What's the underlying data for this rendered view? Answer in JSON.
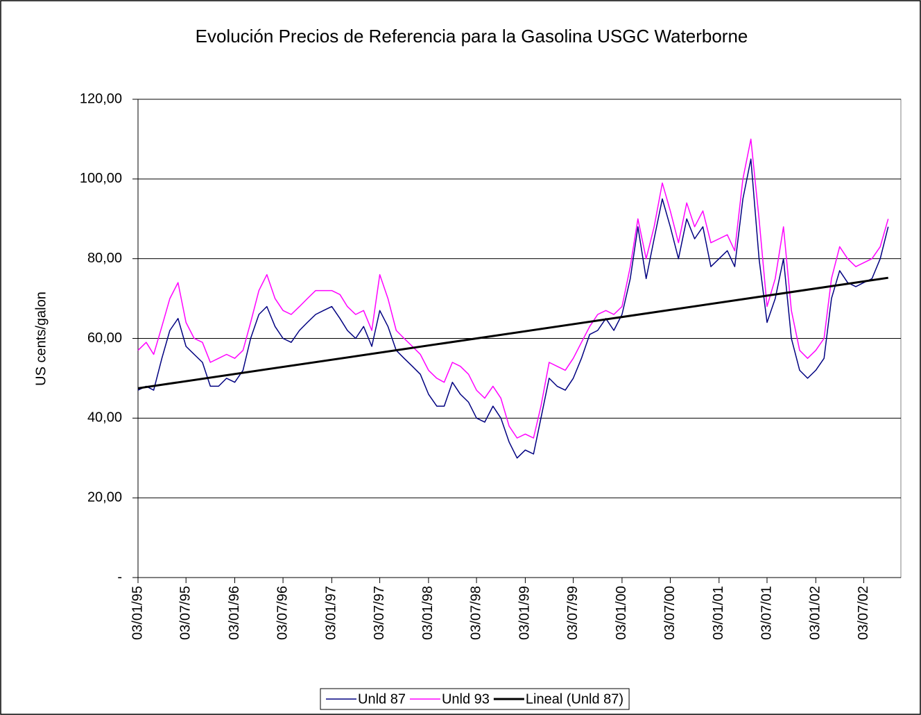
{
  "chart_data": {
    "type": "line",
    "title": "Evolución Precios de Referencia para la Gasolina USGC Waterborne",
    "y_label": "US cents/galon",
    "x": [
      "1995-01-03",
      "1995-02-03",
      "1995-03-03",
      "1995-04-03",
      "1995-05-03",
      "1995-06-03",
      "1995-07-03",
      "1995-08-03",
      "1995-09-03",
      "1995-10-03",
      "1995-11-03",
      "1995-12-03",
      "1996-01-03",
      "1996-02-03",
      "1996-03-03",
      "1996-04-03",
      "1996-05-03",
      "1996-06-03",
      "1996-07-03",
      "1996-08-03",
      "1996-09-03",
      "1996-10-03",
      "1996-11-03",
      "1996-12-03",
      "1997-01-03",
      "1997-02-03",
      "1997-03-03",
      "1997-04-03",
      "1997-05-03",
      "1997-06-03",
      "1997-07-03",
      "1997-08-03",
      "1997-09-03",
      "1997-10-03",
      "1997-11-03",
      "1997-12-03",
      "1998-01-03",
      "1998-02-03",
      "1998-03-03",
      "1998-04-03",
      "1998-05-03",
      "1998-06-03",
      "1998-07-03",
      "1998-08-03",
      "1998-09-03",
      "1998-10-03",
      "1998-11-03",
      "1998-12-03",
      "1999-01-03",
      "1999-02-03",
      "1999-03-03",
      "1999-04-03",
      "1999-05-03",
      "1999-06-03",
      "1999-07-03",
      "1999-08-03",
      "1999-09-03",
      "1999-10-03",
      "1999-11-03",
      "1999-12-03",
      "2000-01-03",
      "2000-02-03",
      "2000-03-03",
      "2000-04-03",
      "2000-05-03",
      "2000-06-03",
      "2000-07-03",
      "2000-08-03",
      "2000-09-03",
      "2000-10-03",
      "2000-11-03",
      "2000-12-03",
      "2001-01-03",
      "2001-02-03",
      "2001-03-03",
      "2001-04-03",
      "2001-05-03",
      "2001-06-03",
      "2001-07-03",
      "2001-08-03",
      "2001-09-03",
      "2001-10-03",
      "2001-11-03",
      "2001-12-03",
      "2002-01-03",
      "2002-02-03",
      "2002-03-03",
      "2002-04-03",
      "2002-05-03",
      "2002-06-03",
      "2002-07-03",
      "2002-08-03",
      "2002-09-03",
      "2002-10-03"
    ],
    "series": [
      {
        "name": "Unld 87",
        "color": "#000080",
        "width": 1.5,
        "values": [
          47,
          48,
          47,
          55,
          62,
          65,
          58,
          56,
          54,
          48,
          48,
          50,
          49,
          52,
          60,
          66,
          68,
          63,
          60,
          59,
          62,
          64,
          66,
          67,
          68,
          65,
          62,
          60,
          63,
          58,
          67,
          63,
          57,
          55,
          53,
          51,
          46,
          43,
          43,
          49,
          46,
          44,
          40,
          39,
          43,
          40,
          34,
          30,
          32,
          31,
          40,
          50,
          48,
          47,
          50,
          55,
          61,
          62,
          65,
          62,
          66,
          75,
          88,
          75,
          85,
          95,
          88,
          80,
          90,
          85,
          88,
          78,
          80,
          82,
          78,
          95,
          105,
          80,
          64,
          70,
          80,
          60,
          52,
          50,
          52,
          55,
          70,
          77,
          74,
          73,
          74,
          75,
          80,
          88
        ]
      },
      {
        "name": "Unld 93",
        "color": "#ff00ff",
        "width": 1.5,
        "values": [
          57,
          59,
          56,
          63,
          70,
          74,
          64,
          60,
          59,
          54,
          55,
          56,
          55,
          57,
          64,
          72,
          76,
          70,
          67,
          66,
          68,
          70,
          72,
          72,
          72,
          71,
          68,
          66,
          67,
          62,
          76,
          70,
          62,
          60,
          58,
          56,
          52,
          50,
          49,
          54,
          53,
          51,
          47,
          45,
          48,
          45,
          38,
          35,
          36,
          35,
          43,
          54,
          53,
          52,
          55,
          59,
          63,
          66,
          67,
          66,
          68,
          78,
          90,
          80,
          88,
          99,
          92,
          84,
          94,
          88,
          92,
          84,
          85,
          86,
          82,
          100,
          110,
          90,
          68,
          75,
          88,
          67,
          57,
          55,
          57,
          60,
          75,
          83,
          80,
          78,
          79,
          80,
          83,
          90
        ]
      },
      {
        "name": "Lineal (Unld 87)",
        "color": "#000000",
        "width": 3,
        "x": [
          "1995-01-03",
          "2002-10-03"
        ],
        "values": [
          47.5,
          75.2
        ]
      }
    ],
    "xlim": [
      "1995-01-03",
      "2002-11-20"
    ],
    "xticks": [
      {
        "value": "1995-01-03",
        "label": "03/01/95"
      },
      {
        "value": "1995-07-03",
        "label": "03/07/95"
      },
      {
        "value": "1996-01-03",
        "label": "03/01/96"
      },
      {
        "value": "1996-07-03",
        "label": "03/07/96"
      },
      {
        "value": "1997-01-03",
        "label": "03/01/97"
      },
      {
        "value": "1997-07-03",
        "label": "03/07/97"
      },
      {
        "value": "1998-01-03",
        "label": "03/01/98"
      },
      {
        "value": "1998-07-03",
        "label": "03/07/98"
      },
      {
        "value": "1999-01-03",
        "label": "03/01/99"
      },
      {
        "value": "1999-07-03",
        "label": "03/07/99"
      },
      {
        "value": "2000-01-03",
        "label": "03/01/00"
      },
      {
        "value": "2000-07-03",
        "label": "03/07/00"
      },
      {
        "value": "2001-01-03",
        "label": "03/01/01"
      },
      {
        "value": "2001-07-03",
        "label": "03/07/01"
      },
      {
        "value": "2002-01-03",
        "label": "03/01/02"
      },
      {
        "value": "2002-07-03",
        "label": "03/07/02"
      }
    ],
    "ylim": [
      0,
      120
    ],
    "yticks": [
      {
        "value": 0,
        "label": "-"
      },
      {
        "value": 20,
        "label": "20,00"
      },
      {
        "value": 40,
        "label": "40,00"
      },
      {
        "value": 60,
        "label": "60,00"
      },
      {
        "value": 80,
        "label": "80,00"
      },
      {
        "value": 100,
        "label": "100,00"
      },
      {
        "value": 120,
        "label": "120,00"
      }
    ],
    "grid": true,
    "legend": "bottom"
  }
}
